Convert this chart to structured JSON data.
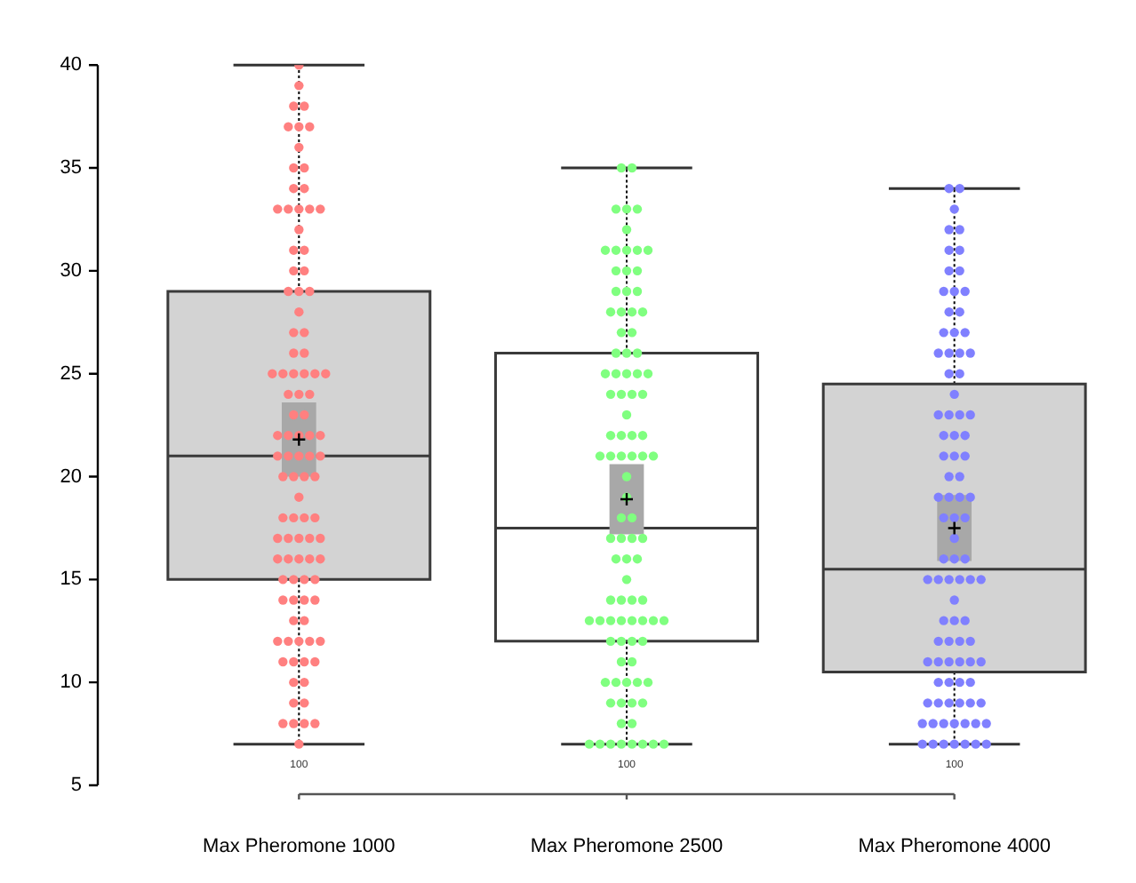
{
  "chart_data": {
    "type": "box",
    "categories": [
      "Max Pheromone 1000",
      "Max Pheromone 2500",
      "Max Pheromone 4000"
    ],
    "series": [
      {
        "type": "box",
        "colors": [
          "#d3d3d3",
          "#ffffff",
          "#d3d3d3"
        ],
        "boxes": [
          {
            "low": 7,
            "q1": 15,
            "median": 21,
            "q3": 29,
            "high": 40,
            "mean": 21.8
          },
          {
            "low": 7,
            "q1": 12,
            "median": 17.5,
            "q3": 26,
            "high": 35,
            "mean": 18.9
          },
          {
            "low": 7,
            "q1": 10.5,
            "median": 15.5,
            "q3": 24.5,
            "high": 34,
            "mean": 17.5
          }
        ]
      },
      {
        "type": "scatter",
        "color": "#ff8080",
        "x": [
          "Max Pheromone 1000",
          "Max Pheromone 1000",
          "Max Pheromone 1000",
          "Max Pheromone 1000",
          "Max Pheromone 1000",
          "Max Pheromone 1000",
          "Max Pheromone 1000",
          "Max Pheromone 1000",
          "Max Pheromone 1000",
          "Max Pheromone 1000",
          "Max Pheromone 1000",
          "Max Pheromone 1000",
          "Max Pheromone 1000",
          "Max Pheromone 1000",
          "Max Pheromone 1000",
          "Max Pheromone 1000",
          "Max Pheromone 1000",
          "Max Pheromone 1000",
          "Max Pheromone 1000",
          "Max Pheromone 1000",
          "Max Pheromone 1000",
          "Max Pheromone 1000",
          "Max Pheromone 1000",
          "Max Pheromone 1000",
          "Max Pheromone 1000",
          "Max Pheromone 1000",
          "Max Pheromone 1000",
          "Max Pheromone 1000",
          "Max Pheromone 1000",
          "Max Pheromone 1000",
          "Max Pheromone 1000",
          "Max Pheromone 1000",
          "Max Pheromone 1000",
          "Max Pheromone 1000",
          "Max Pheromone 1000",
          "Max Pheromone 1000",
          "Max Pheromone 1000",
          "Max Pheromone 1000",
          "Max Pheromone 1000",
          "Max Pheromone 1000",
          "Max Pheromone 1000",
          "Max Pheromone 1000",
          "Max Pheromone 1000",
          "Max Pheromone 1000",
          "Max Pheromone 1000",
          "Max Pheromone 1000",
          "Max Pheromone 1000",
          "Max Pheromone 1000",
          "Max Pheromone 1000",
          "Max Pheromone 1000",
          "Max Pheromone 1000",
          "Max Pheromone 1000",
          "Max Pheromone 1000",
          "Max Pheromone 1000",
          "Max Pheromone 1000",
          "Max Pheromone 1000",
          "Max Pheromone 1000",
          "Max Pheromone 1000",
          "Max Pheromone 1000",
          "Max Pheromone 1000",
          "Max Pheromone 1000",
          "Max Pheromone 1000",
          "Max Pheromone 1000",
          "Max Pheromone 1000",
          "Max Pheromone 1000",
          "Max Pheromone 1000",
          "Max Pheromone 1000",
          "Max Pheromone 1000",
          "Max Pheromone 1000",
          "Max Pheromone 1000",
          "Max Pheromone 1000",
          "Max Pheromone 1000",
          "Max Pheromone 1000",
          "Max Pheromone 1000",
          "Max Pheromone 1000",
          "Max Pheromone 1000",
          "Max Pheromone 1000",
          "Max Pheromone 1000",
          "Max Pheromone 1000",
          "Max Pheromone 1000",
          "Max Pheromone 1000",
          "Max Pheromone 1000",
          "Max Pheromone 1000",
          "Max Pheromone 1000",
          "Max Pheromone 1000",
          "Max Pheromone 1000",
          "Max Pheromone 1000",
          "Max Pheromone 1000",
          "Max Pheromone 1000",
          "Max Pheromone 1000",
          "Max Pheromone 1000",
          "Max Pheromone 1000",
          "Max Pheromone 1000",
          "Max Pheromone 1000",
          "Max Pheromone 1000",
          "Max Pheromone 1000",
          "Max Pheromone 1000",
          "Max Pheromone 1000"
        ],
        "values": [
          40,
          39,
          38,
          38,
          37,
          37,
          37,
          36,
          35,
          35,
          34,
          34,
          33,
          33,
          33,
          33,
          33,
          32,
          31,
          31,
          30,
          30,
          29,
          29,
          29,
          28,
          27,
          27,
          26,
          26,
          25,
          25,
          25,
          25,
          25,
          25,
          24,
          24,
          24,
          23,
          23,
          22,
          22,
          22,
          22,
          22,
          21,
          21,
          21,
          21,
          21,
          20,
          20,
          20,
          20,
          19,
          18,
          18,
          18,
          18,
          17,
          17,
          17,
          17,
          17,
          16,
          16,
          16,
          16,
          16,
          15,
          15,
          15,
          15,
          14,
          14,
          14,
          14,
          13,
          13,
          12,
          12,
          12,
          12,
          12,
          11,
          11,
          11,
          11,
          10,
          10,
          9,
          9,
          8,
          8,
          8,
          8,
          7
        ]
      },
      {
        "type": "scatter",
        "color": "#80ff80",
        "x": [
          "Max Pheromone 2500",
          "Max Pheromone 2500",
          "Max Pheromone 2500",
          "Max Pheromone 2500",
          "Max Pheromone 2500",
          "Max Pheromone 2500",
          "Max Pheromone 2500",
          "Max Pheromone 2500",
          "Max Pheromone 2500",
          "Max Pheromone 2500",
          "Max Pheromone 2500",
          "Max Pheromone 2500",
          "Max Pheromone 2500",
          "Max Pheromone 2500",
          "Max Pheromone 2500",
          "Max Pheromone 2500",
          "Max Pheromone 2500",
          "Max Pheromone 2500",
          "Max Pheromone 2500",
          "Max Pheromone 2500",
          "Max Pheromone 2500",
          "Max Pheromone 2500",
          "Max Pheromone 2500",
          "Max Pheromone 2500",
          "Max Pheromone 2500",
          "Max Pheromone 2500",
          "Max Pheromone 2500",
          "Max Pheromone 2500",
          "Max Pheromone 2500",
          "Max Pheromone 2500",
          "Max Pheromone 2500",
          "Max Pheromone 2500",
          "Max Pheromone 2500",
          "Max Pheromone 2500",
          "Max Pheromone 2500",
          "Max Pheromone 2500",
          "Max Pheromone 2500",
          "Max Pheromone 2500",
          "Max Pheromone 2500",
          "Max Pheromone 2500",
          "Max Pheromone 2500",
          "Max Pheromone 2500",
          "Max Pheromone 2500",
          "Max Pheromone 2500",
          "Max Pheromone 2500",
          "Max Pheromone 2500",
          "Max Pheromone 2500",
          "Max Pheromone 2500",
          "Max Pheromone 2500",
          "Max Pheromone 2500",
          "Max Pheromone 2500",
          "Max Pheromone 2500",
          "Max Pheromone 2500",
          "Max Pheromone 2500",
          "Max Pheromone 2500",
          "Max Pheromone 2500",
          "Max Pheromone 2500",
          "Max Pheromone 2500",
          "Max Pheromone 2500",
          "Max Pheromone 2500",
          "Max Pheromone 2500",
          "Max Pheromone 2500",
          "Max Pheromone 2500",
          "Max Pheromone 2500",
          "Max Pheromone 2500",
          "Max Pheromone 2500",
          "Max Pheromone 2500",
          "Max Pheromone 2500",
          "Max Pheromone 2500",
          "Max Pheromone 2500",
          "Max Pheromone 2500",
          "Max Pheromone 2500",
          "Max Pheromone 2500",
          "Max Pheromone 2500",
          "Max Pheromone 2500",
          "Max Pheromone 2500",
          "Max Pheromone 2500",
          "Max Pheromone 2500",
          "Max Pheromone 2500",
          "Max Pheromone 2500",
          "Max Pheromone 2500",
          "Max Pheromone 2500",
          "Max Pheromone 2500",
          "Max Pheromone 2500",
          "Max Pheromone 2500",
          "Max Pheromone 2500",
          "Max Pheromone 2500",
          "Max Pheromone 2500",
          "Max Pheromone 2500",
          "Max Pheromone 2500",
          "Max Pheromone 2500",
          "Max Pheromone 2500",
          "Max Pheromone 2500",
          "Max Pheromone 2500",
          "Max Pheromone 2500"
        ],
        "values": [
          35,
          35,
          33,
          33,
          33,
          32,
          31,
          31,
          31,
          31,
          31,
          30,
          30,
          30,
          29,
          29,
          29,
          28,
          28,
          28,
          28,
          27,
          27,
          26,
          26,
          26,
          25,
          25,
          25,
          25,
          25,
          24,
          24,
          24,
          24,
          23,
          22,
          22,
          22,
          22,
          21,
          21,
          21,
          21,
          21,
          21,
          20,
          19,
          18,
          18,
          17,
          17,
          17,
          17,
          16,
          16,
          16,
          15,
          14,
          14,
          14,
          14,
          13,
          13,
          13,
          13,
          13,
          13,
          13,
          13,
          12,
          12,
          12,
          12,
          11,
          11,
          10,
          10,
          10,
          10,
          10,
          9,
          9,
          9,
          9,
          8,
          8,
          7,
          7,
          7,
          7,
          7,
          7,
          7,
          7
        ]
      },
      {
        "type": "scatter",
        "color": "#8080ff",
        "x": [
          "Max Pheromone 4000",
          "Max Pheromone 4000",
          "Max Pheromone 4000",
          "Max Pheromone 4000",
          "Max Pheromone 4000",
          "Max Pheromone 4000",
          "Max Pheromone 4000",
          "Max Pheromone 4000",
          "Max Pheromone 4000",
          "Max Pheromone 4000",
          "Max Pheromone 4000",
          "Max Pheromone 4000",
          "Max Pheromone 4000",
          "Max Pheromone 4000",
          "Max Pheromone 4000",
          "Max Pheromone 4000",
          "Max Pheromone 4000",
          "Max Pheromone 4000",
          "Max Pheromone 4000",
          "Max Pheromone 4000",
          "Max Pheromone 4000",
          "Max Pheromone 4000",
          "Max Pheromone 4000",
          "Max Pheromone 4000",
          "Max Pheromone 4000",
          "Max Pheromone 4000",
          "Max Pheromone 4000",
          "Max Pheromone 4000",
          "Max Pheromone 4000",
          "Max Pheromone 4000",
          "Max Pheromone 4000",
          "Max Pheromone 4000",
          "Max Pheromone 4000",
          "Max Pheromone 4000",
          "Max Pheromone 4000",
          "Max Pheromone 4000",
          "Max Pheromone 4000",
          "Max Pheromone 4000",
          "Max Pheromone 4000",
          "Max Pheromone 4000",
          "Max Pheromone 4000",
          "Max Pheromone 4000",
          "Max Pheromone 4000",
          "Max Pheromone 4000",
          "Max Pheromone 4000",
          "Max Pheromone 4000",
          "Max Pheromone 4000",
          "Max Pheromone 4000",
          "Max Pheromone 4000",
          "Max Pheromone 4000",
          "Max Pheromone 4000",
          "Max Pheromone 4000",
          "Max Pheromone 4000",
          "Max Pheromone 4000",
          "Max Pheromone 4000",
          "Max Pheromone 4000",
          "Max Pheromone 4000",
          "Max Pheromone 4000",
          "Max Pheromone 4000",
          "Max Pheromone 4000",
          "Max Pheromone 4000",
          "Max Pheromone 4000",
          "Max Pheromone 4000",
          "Max Pheromone 4000",
          "Max Pheromone 4000",
          "Max Pheromone 4000",
          "Max Pheromone 4000",
          "Max Pheromone 4000",
          "Max Pheromone 4000",
          "Max Pheromone 4000",
          "Max Pheromone 4000",
          "Max Pheromone 4000",
          "Max Pheromone 4000",
          "Max Pheromone 4000",
          "Max Pheromone 4000",
          "Max Pheromone 4000",
          "Max Pheromone 4000",
          "Max Pheromone 4000",
          "Max Pheromone 4000",
          "Max Pheromone 4000",
          "Max Pheromone 4000",
          "Max Pheromone 4000",
          "Max Pheromone 4000",
          "Max Pheromone 4000",
          "Max Pheromone 4000",
          "Max Pheromone 4000",
          "Max Pheromone 4000",
          "Max Pheromone 4000",
          "Max Pheromone 4000",
          "Max Pheromone 4000",
          "Max Pheromone 4000"
        ],
        "values": [
          34,
          34,
          33,
          32,
          32,
          31,
          31,
          30,
          30,
          29,
          29,
          29,
          28,
          28,
          27,
          27,
          27,
          26,
          26,
          26,
          26,
          25,
          25,
          24,
          23,
          23,
          23,
          23,
          22,
          22,
          22,
          21,
          21,
          21,
          20,
          20,
          19,
          19,
          19,
          19,
          18,
          18,
          18,
          17,
          16,
          16,
          16,
          15,
          15,
          15,
          15,
          15,
          15,
          14,
          13,
          13,
          13,
          12,
          12,
          12,
          12,
          11,
          11,
          11,
          11,
          11,
          11,
          10,
          10,
          10,
          10,
          9,
          9,
          9,
          9,
          9,
          9,
          8,
          8,
          8,
          8,
          8,
          8,
          8,
          7,
          7,
          7,
          7,
          7,
          7,
          7
        ]
      },
      {
        "type": "bar",
        "color": "#a8a8a8",
        "base": [
          20.0,
          17.2,
          15.9
        ],
        "values": [
          3.6,
          3.4,
          3.2
        ]
      }
    ],
    "ylim": [
      5,
      40
    ],
    "yticks": [
      5,
      10,
      15,
      20,
      25,
      30,
      35,
      40
    ],
    "marker": "circle",
    "annotations": [
      "100",
      "100",
      "100"
    ]
  }
}
